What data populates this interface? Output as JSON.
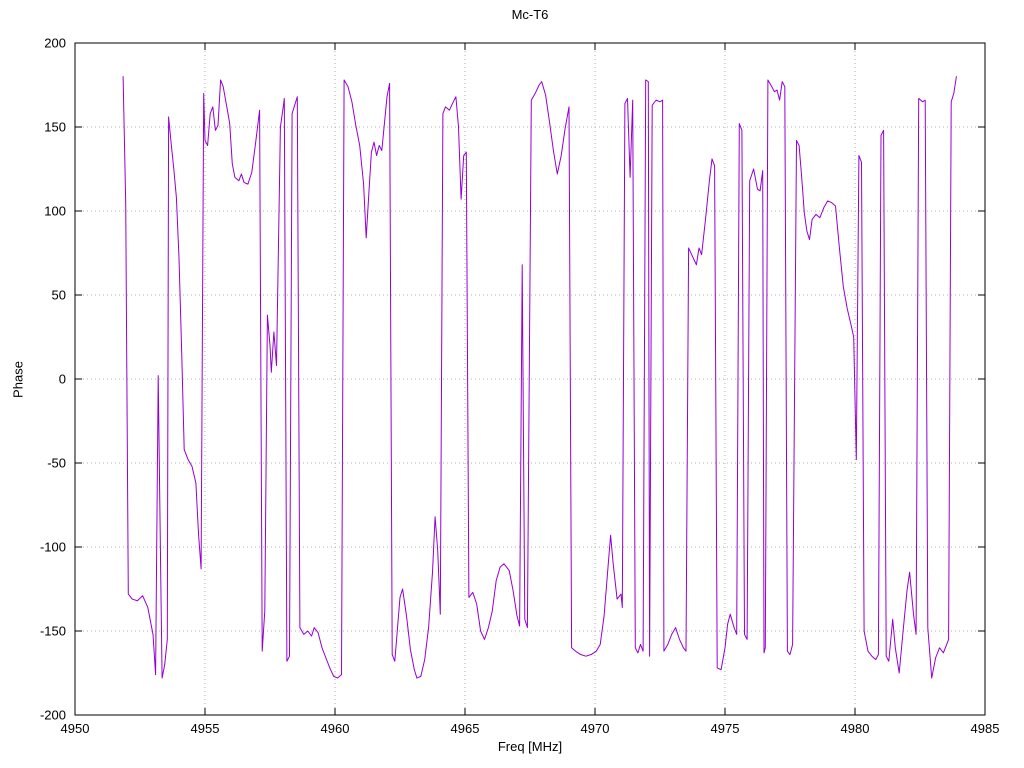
{
  "chart_data": {
    "type": "line",
    "title": "Mc-T6",
    "xlabel": "Freq [MHz]",
    "ylabel": "Phase",
    "xlim": [
      4950,
      4985
    ],
    "ylim": [
      -200,
      200
    ],
    "xticks": [
      4950,
      4955,
      4960,
      4965,
      4970,
      4975,
      4980,
      4985
    ],
    "yticks": [
      -200,
      -150,
      -100,
      -50,
      0,
      50,
      100,
      150,
      200
    ],
    "grid": true,
    "legend": "none",
    "series": [
      {
        "name": "phase",
        "color": "#9400d3",
        "points": [
          [
            4951.85,
            180
          ],
          [
            4951.95,
            105
          ],
          [
            4952.05,
            -128
          ],
          [
            4952.2,
            -131
          ],
          [
            4952.4,
            -132
          ],
          [
            4952.6,
            -129
          ],
          [
            4952.8,
            -136
          ],
          [
            4953.0,
            -152
          ],
          [
            4953.1,
            -176
          ],
          [
            4953.2,
            2
          ],
          [
            4953.3,
            -120
          ],
          [
            4953.35,
            -178
          ],
          [
            4953.45,
            -170
          ],
          [
            4953.55,
            -155
          ],
          [
            4953.6,
            156
          ],
          [
            4953.7,
            140
          ],
          [
            4953.8,
            125
          ],
          [
            4953.9,
            108
          ],
          [
            4954.0,
            72
          ],
          [
            4954.1,
            18
          ],
          [
            4954.2,
            -42
          ],
          [
            4954.35,
            -48
          ],
          [
            4954.5,
            -52
          ],
          [
            4954.65,
            -62
          ],
          [
            4954.75,
            -92
          ],
          [
            4954.85,
            -113
          ],
          [
            4954.95,
            170
          ],
          [
            4955.0,
            142
          ],
          [
            4955.1,
            139
          ],
          [
            4955.2,
            158
          ],
          [
            4955.3,
            162
          ],
          [
            4955.4,
            148
          ],
          [
            4955.5,
            151
          ],
          [
            4955.6,
            178
          ],
          [
            4955.7,
            174
          ],
          [
            4955.85,
            161
          ],
          [
            4955.95,
            152
          ],
          [
            4956.05,
            128
          ],
          [
            4956.15,
            120
          ],
          [
            4956.3,
            118
          ],
          [
            4956.4,
            122
          ],
          [
            4956.5,
            117
          ],
          [
            4956.65,
            116
          ],
          [
            4956.8,
            123
          ],
          [
            4956.95,
            141
          ],
          [
            4957.1,
            160
          ],
          [
            4957.2,
            -162
          ],
          [
            4957.3,
            -138
          ],
          [
            4957.4,
            38
          ],
          [
            4957.5,
            20
          ],
          [
            4957.55,
            4
          ],
          [
            4957.65,
            28
          ],
          [
            4957.75,
            8
          ],
          [
            4957.9,
            150
          ],
          [
            4958.0,
            161
          ],
          [
            4958.05,
            167
          ],
          [
            4958.15,
            -168
          ],
          [
            4958.25,
            -165
          ],
          [
            4958.35,
            158
          ],
          [
            4958.45,
            163
          ],
          [
            4958.55,
            168
          ],
          [
            4958.65,
            -148
          ],
          [
            4958.8,
            -152
          ],
          [
            4958.95,
            -150
          ],
          [
            4959.1,
            -153
          ],
          [
            4959.2,
            -148
          ],
          [
            4959.35,
            -151
          ],
          [
            4959.5,
            -160
          ],
          [
            4959.65,
            -166
          ],
          [
            4959.8,
            -172
          ],
          [
            4959.95,
            -177
          ],
          [
            4960.1,
            -178
          ],
          [
            4960.25,
            -176
          ],
          [
            4960.35,
            178
          ],
          [
            4960.5,
            174
          ],
          [
            4960.65,
            165
          ],
          [
            4960.8,
            151
          ],
          [
            4960.95,
            139
          ],
          [
            4961.1,
            116
          ],
          [
            4961.2,
            84
          ],
          [
            4961.3,
            110
          ],
          [
            4961.4,
            135
          ],
          [
            4961.5,
            141
          ],
          [
            4961.6,
            133
          ],
          [
            4961.7,
            139
          ],
          [
            4961.8,
            136
          ],
          [
            4961.9,
            152
          ],
          [
            4962.0,
            168
          ],
          [
            4962.1,
            176
          ],
          [
            4962.2,
            -164
          ],
          [
            4962.3,
            -168
          ],
          [
            4962.4,
            -149
          ],
          [
            4962.5,
            -130
          ],
          [
            4962.6,
            -125
          ],
          [
            4962.75,
            -141
          ],
          [
            4962.9,
            -161
          ],
          [
            4963.05,
            -173
          ],
          [
            4963.15,
            -178
          ],
          [
            4963.3,
            -177
          ],
          [
            4963.45,
            -167
          ],
          [
            4963.6,
            -148
          ],
          [
            4963.75,
            -115
          ],
          [
            4963.85,
            -82
          ],
          [
            4963.95,
            -102
          ],
          [
            4964.05,
            -140
          ],
          [
            4964.15,
            158
          ],
          [
            4964.25,
            162
          ],
          [
            4964.4,
            160
          ],
          [
            4964.55,
            165
          ],
          [
            4964.65,
            168
          ],
          [
            4964.75,
            150
          ],
          [
            4964.85,
            107
          ],
          [
            4964.95,
            133
          ],
          [
            4965.05,
            135
          ],
          [
            4965.15,
            -130
          ],
          [
            4965.3,
            -127
          ],
          [
            4965.45,
            -134
          ],
          [
            4965.6,
            -150
          ],
          [
            4965.75,
            -155
          ],
          [
            4965.9,
            -148
          ],
          [
            4966.05,
            -138
          ],
          [
            4966.2,
            -120
          ],
          [
            4966.35,
            -112
          ],
          [
            4966.5,
            -110
          ],
          [
            4966.7,
            -114
          ],
          [
            4966.85,
            -126
          ],
          [
            4967.0,
            -141
          ],
          [
            4967.1,
            -147
          ],
          [
            4967.2,
            68
          ],
          [
            4967.3,
            -143
          ],
          [
            4967.4,
            -148
          ],
          [
            4967.55,
            166
          ],
          [
            4967.7,
            170
          ],
          [
            4967.85,
            175
          ],
          [
            4967.95,
            177
          ],
          [
            4968.1,
            169
          ],
          [
            4968.25,
            153
          ],
          [
            4968.4,
            136
          ],
          [
            4968.55,
            122
          ],
          [
            4968.7,
            133
          ],
          [
            4968.85,
            149
          ],
          [
            4969.0,
            162
          ],
          [
            4969.1,
            -160
          ],
          [
            4969.25,
            -162
          ],
          [
            4969.45,
            -164
          ],
          [
            4969.65,
            -165
          ],
          [
            4969.85,
            -164
          ],
          [
            4970.05,
            -162
          ],
          [
            4970.2,
            -158
          ],
          [
            4970.35,
            -141
          ],
          [
            4970.5,
            -112
          ],
          [
            4970.6,
            -93
          ],
          [
            4970.7,
            -110
          ],
          [
            4970.85,
            -131
          ],
          [
            4971.0,
            -128
          ],
          [
            4971.05,
            -136
          ],
          [
            4971.15,
            164
          ],
          [
            4971.25,
            167
          ],
          [
            4971.35,
            120
          ],
          [
            4971.45,
            166
          ],
          [
            4971.55,
            -160
          ],
          [
            4971.65,
            -163
          ],
          [
            4971.75,
            -158
          ],
          [
            4971.85,
            -162
          ],
          [
            4971.95,
            178
          ],
          [
            4972.05,
            177
          ],
          [
            4972.1,
            -165
          ],
          [
            4972.2,
            163
          ],
          [
            4972.35,
            166
          ],
          [
            4972.5,
            165
          ],
          [
            4972.6,
            166
          ],
          [
            4972.65,
            -162
          ],
          [
            4972.8,
            -158
          ],
          [
            4972.95,
            -152
          ],
          [
            4973.1,
            -148
          ],
          [
            4973.25,
            -155
          ],
          [
            4973.4,
            -160
          ],
          [
            4973.5,
            -162
          ],
          [
            4973.6,
            78
          ],
          [
            4973.75,
            73
          ],
          [
            4973.9,
            68
          ],
          [
            4974.0,
            78
          ],
          [
            4974.1,
            74
          ],
          [
            4974.25,
            95
          ],
          [
            4974.4,
            118
          ],
          [
            4974.5,
            131
          ],
          [
            4974.6,
            127
          ],
          [
            4974.7,
            -172
          ],
          [
            4974.85,
            -173
          ],
          [
            4975.0,
            -160
          ],
          [
            4975.1,
            -146
          ],
          [
            4975.2,
            -140
          ],
          [
            4975.35,
            -148
          ],
          [
            4975.45,
            -152
          ],
          [
            4975.55,
            152
          ],
          [
            4975.65,
            148
          ],
          [
            4975.75,
            -152
          ],
          [
            4975.85,
            -155
          ],
          [
            4975.95,
            118
          ],
          [
            4976.1,
            125
          ],
          [
            4976.25,
            113
          ],
          [
            4976.35,
            112
          ],
          [
            4976.45,
            124
          ],
          [
            4976.5,
            -163
          ],
          [
            4976.55,
            -160
          ],
          [
            4976.65,
            178
          ],
          [
            4976.8,
            174
          ],
          [
            4976.9,
            171
          ],
          [
            4977.0,
            172
          ],
          [
            4977.1,
            166
          ],
          [
            4977.2,
            177
          ],
          [
            4977.3,
            174
          ],
          [
            4977.4,
            -162
          ],
          [
            4977.5,
            -164
          ],
          [
            4977.6,
            -158
          ],
          [
            4977.75,
            142
          ],
          [
            4977.85,
            139
          ],
          [
            4977.95,
            120
          ],
          [
            4978.05,
            99
          ],
          [
            4978.15,
            88
          ],
          [
            4978.25,
            83
          ],
          [
            4978.35,
            95
          ],
          [
            4978.5,
            98
          ],
          [
            4978.65,
            96
          ],
          [
            4978.8,
            102
          ],
          [
            4978.95,
            106
          ],
          [
            4979.1,
            105
          ],
          [
            4979.25,
            103
          ],
          [
            4979.4,
            78
          ],
          [
            4979.55,
            55
          ],
          [
            4979.7,
            42
          ],
          [
            4979.85,
            32
          ],
          [
            4979.95,
            25
          ],
          [
            4980.05,
            -48
          ],
          [
            4980.15,
            133
          ],
          [
            4980.25,
            129
          ],
          [
            4980.35,
            -150
          ],
          [
            4980.5,
            -162
          ],
          [
            4980.65,
            -165
          ],
          [
            4980.8,
            -167
          ],
          [
            4980.9,
            -164
          ],
          [
            4981.0,
            145
          ],
          [
            4981.1,
            148
          ],
          [
            4981.2,
            -165
          ],
          [
            4981.3,
            -168
          ],
          [
            4981.45,
            -143
          ],
          [
            4981.55,
            -160
          ],
          [
            4981.7,
            -175
          ],
          [
            4981.85,
            -150
          ],
          [
            4982.0,
            -126
          ],
          [
            4982.1,
            -115
          ],
          [
            4982.25,
            -140
          ],
          [
            4982.35,
            -152
          ],
          [
            4982.45,
            167
          ],
          [
            4982.6,
            165
          ],
          [
            4982.7,
            166
          ],
          [
            4982.8,
            -148
          ],
          [
            4982.95,
            -178
          ],
          [
            4983.1,
            -166
          ],
          [
            4983.25,
            -160
          ],
          [
            4983.4,
            -163
          ],
          [
            4983.6,
            -155
          ],
          [
            4983.7,
            165
          ],
          [
            4983.8,
            170
          ],
          [
            4983.9,
            180
          ]
        ]
      }
    ]
  },
  "colors": {
    "background": "#ffffff",
    "grid": "#b0b0b0",
    "axis": "#000000",
    "line": "#9400d3",
    "text": "#000000"
  }
}
